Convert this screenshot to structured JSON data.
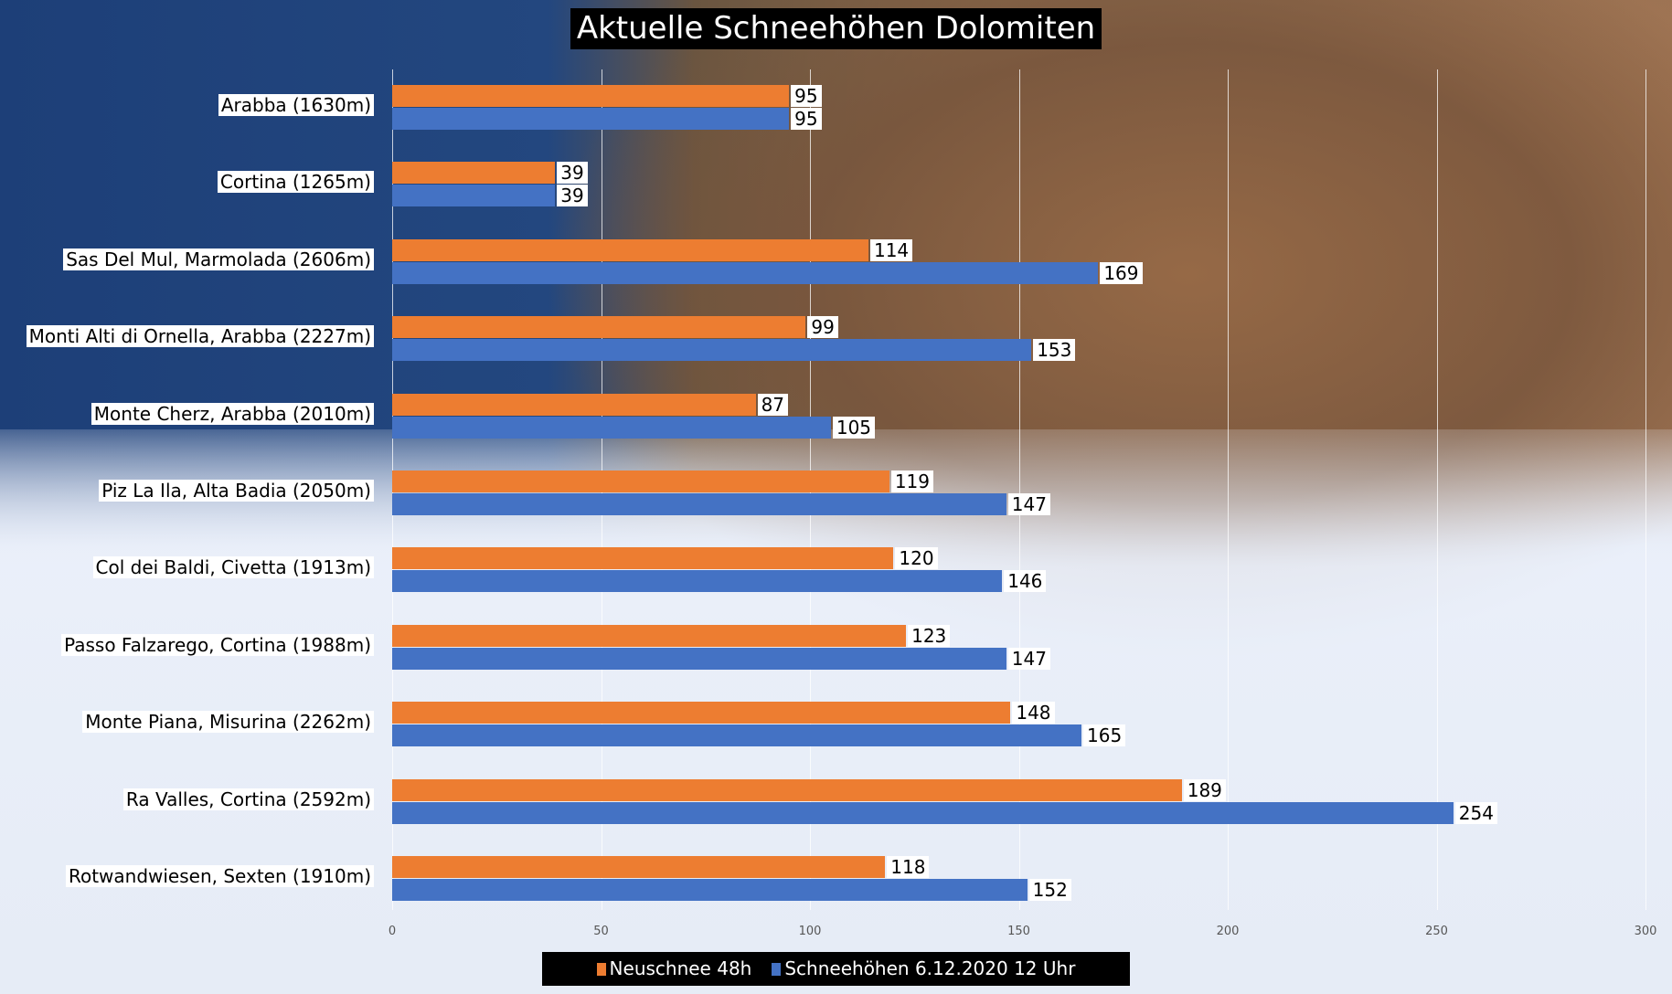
{
  "chart_data": {
    "type": "bar",
    "orientation": "horizontal",
    "title": "Aktuelle Schneehöhen Dolomiten",
    "categories": [
      "Arabba (1630m)",
      "Cortina (1265m)",
      "Sas Del Mul, Marmolada (2606m)",
      "Monti Alti di Ornella, Arabba (2227m)",
      "Monte Cherz, Arabba (2010m)",
      "Piz La Ila, Alta Badia (2050m)",
      "Col dei Baldi, Civetta (1913m)",
      "Passo Falzarego, Cortina (1988m)",
      "Monte Piana, Misurina (2262m)",
      "Ra Valles, Cortina (2592m)",
      "Rotwandwiesen, Sexten (1910m)"
    ],
    "series": [
      {
        "name": "Neuschnee 48h",
        "color": "#ed7d31",
        "values": [
          95,
          39,
          114,
          99,
          87,
          119,
          120,
          123,
          148,
          189,
          118
        ]
      },
      {
        "name": "Schneehöhen 6.12.2020 12 Uhr",
        "color": "#4472c4",
        "values": [
          95,
          39,
          169,
          153,
          105,
          147,
          146,
          147,
          165,
          254,
          152
        ]
      }
    ],
    "xlim": [
      0,
      300
    ],
    "xticks": [
      "0",
      "50",
      "100",
      "150",
      "200",
      "250",
      "300"
    ],
    "grid": true,
    "legend_position": "bottom"
  }
}
